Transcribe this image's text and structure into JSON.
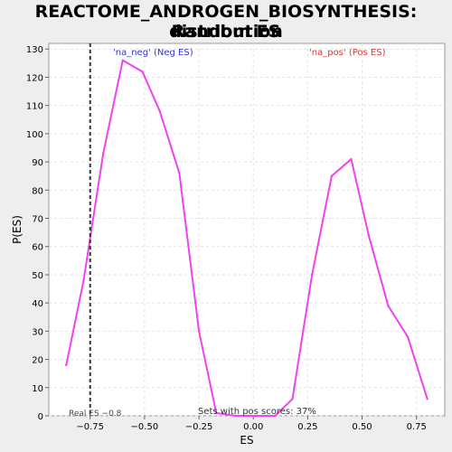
{
  "chart_data": {
    "type": "line",
    "title_line1": "REACTOME_ANDROGEN_BIOSYNTHESIS: Random ES",
    "title_line2": "distribution",
    "xlabel": "ES",
    "ylabel": "P(ES)",
    "xlim": [
      -0.94,
      0.88
    ],
    "ylim": [
      0,
      132
    ],
    "x_ticks": [
      -0.75,
      -0.5,
      -0.25,
      0.0,
      0.25,
      0.5,
      0.75
    ],
    "x_tick_labels": [
      "−0.75",
      "−0.50",
      "−0.25",
      "0.00",
      "0.25",
      "0.50",
      "0.75"
    ],
    "y_ticks": [
      0,
      10,
      20,
      30,
      40,
      50,
      60,
      70,
      80,
      90,
      100,
      110,
      120,
      130
    ],
    "y_tick_labels": [
      "0",
      "10",
      "20",
      "30",
      "40",
      "50",
      "60",
      "70",
      "80",
      "90",
      "100",
      "110",
      "120",
      "130"
    ],
    "grid": true,
    "series": [
      {
        "color": "#ee44ee",
        "x": [
          -0.86,
          -0.78,
          -0.69,
          -0.6,
          -0.51,
          -0.43,
          -0.34,
          -0.25,
          -0.17,
          -0.08,
          0.01,
          0.1,
          0.18,
          0.27,
          0.36,
          0.45,
          0.53,
          0.62,
          0.71,
          0.8
        ],
        "y": [
          18,
          48,
          93,
          126,
          122,
          108,
          86,
          30,
          1,
          0,
          0,
          0,
          6,
          50,
          85,
          91,
          64,
          39,
          28,
          6
        ]
      }
    ],
    "real_es": {
      "value": -0.75,
      "label": "Real ES −0.8"
    },
    "annotations": {
      "neg_label": "'na_neg' (Neg ES)",
      "neg_color": "#3333cc",
      "pos_label": "'na_pos' (Pos ES)",
      "pos_color": "#dd3333",
      "pos_scores": "Sets with pos scores: 37%"
    }
  }
}
